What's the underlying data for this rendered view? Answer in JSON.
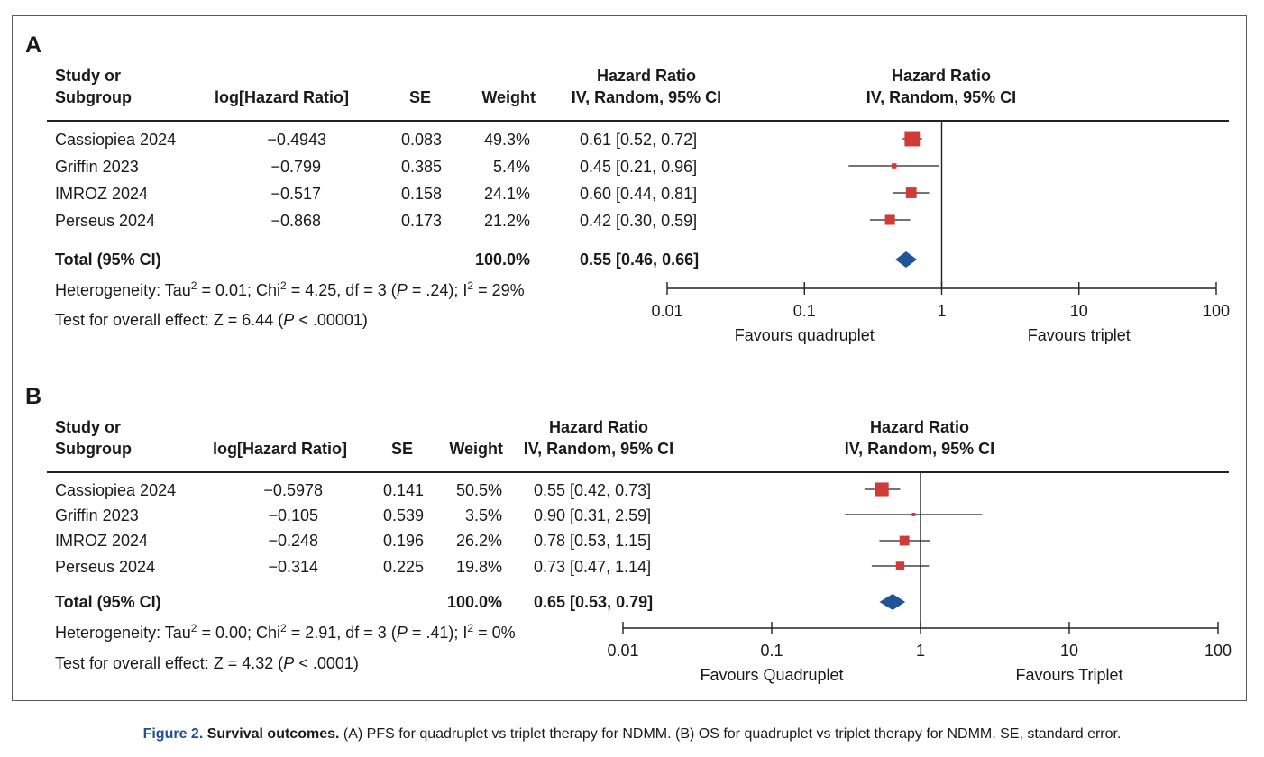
{
  "caption": {
    "figure_label": "Figure 2.",
    "title": "Survival outcomes.",
    "text": " (A) PFS for quadruplet vs triplet therapy for NDMM. (B) OS for quadruplet vs triplet therapy for NDMM. SE, standard error."
  },
  "colors": {
    "study_marker": "#d23a35",
    "total_diamond": "#1f5496",
    "line": "#222222"
  },
  "chart_data": [
    {
      "type": "forest",
      "panel": "A",
      "columns": {
        "study_l1": "Study or",
        "study_l2": "Subgroup",
        "loghr": "log[Hazard Ratio]",
        "se": "SE",
        "weight": "Weight",
        "hr_l1": "Hazard Ratio",
        "hr_l2": "IV, Random, 95% CI",
        "plot_l1": "Hazard Ratio",
        "plot_l2": "IV, Random, 95% CI"
      },
      "studies": [
        {
          "name": "Cassiopiea 2024",
          "loghr": "−0.4943",
          "se": "0.083",
          "weight": "49.3%",
          "ci_text": "0.61 [0.52, 0.72]",
          "hr": 0.61,
          "lo": 0.52,
          "hi": 0.72,
          "w": 49.3
        },
        {
          "name": "Griffin 2023",
          "loghr": "−0.799",
          "se": "0.385",
          "weight": "5.4%",
          "ci_text": "0.45 [0.21, 0.96]",
          "hr": 0.45,
          "lo": 0.21,
          "hi": 0.96,
          "w": 5.4
        },
        {
          "name": "IMROZ 2024",
          "loghr": "−0.517",
          "se": "0.158",
          "weight": "24.1%",
          "ci_text": "0.60 [0.44, 0.81]",
          "hr": 0.6,
          "lo": 0.44,
          "hi": 0.81,
          "w": 24.1
        },
        {
          "name": "Perseus 2024",
          "loghr": "−0.868",
          "se": "0.173",
          "weight": "21.2%",
          "ci_text": "0.42 [0.30, 0.59]",
          "hr": 0.42,
          "lo": 0.3,
          "hi": 0.59,
          "w": 21.2
        }
      ],
      "total": {
        "label": "Total (95% CI)",
        "weight": "100.0%",
        "ci_text": "0.55 [0.46, 0.66]",
        "hr": 0.55,
        "lo": 0.46,
        "hi": 0.66
      },
      "heterogeneity": {
        "p1": "Heterogeneity: Tau",
        "p2": " = 0.01; Chi",
        "p3": " = 4.25, df = 3 (",
        "p4": "P",
        "p5": " = .24); I",
        "p6": " = 29%"
      },
      "overall_effect": {
        "p1": "Test for overall effect: Z = 6.44 (",
        "p2": "P",
        "p3": " < .00001)"
      },
      "axis": {
        "scale": "log",
        "ticks": [
          0.01,
          0.1,
          1,
          10,
          100
        ],
        "tick_labels": [
          "0.01",
          "0.1",
          "1",
          "10",
          "100"
        ],
        "favours_left": "Favours quadruplet",
        "favours_right": "Favours triplet"
      }
    },
    {
      "type": "forest",
      "panel": "B",
      "columns": {
        "study_l1": "Study or",
        "study_l2": "Subgroup",
        "loghr": "log[Hazard Ratio]",
        "se": "SE",
        "weight": "Weight",
        "hr_l1": "Hazard Ratio",
        "hr_l2": "IV, Random, 95% CI",
        "plot_l1": "Hazard Ratio",
        "plot_l2": "IV, Random, 95% CI"
      },
      "studies": [
        {
          "name": "Cassiopiea 2024",
          "loghr": "−0.5978",
          "se": "0.141",
          "weight": "50.5%",
          "ci_text": "0.55 [0.42, 0.73]",
          "hr": 0.55,
          "lo": 0.42,
          "hi": 0.73,
          "w": 50.5
        },
        {
          "name": "Griffin 2023",
          "loghr": "−0.105",
          "se": "0.539",
          "weight": "3.5%",
          "ci_text": "0.90 [0.31, 2.59]",
          "hr": 0.9,
          "lo": 0.31,
          "hi": 2.59,
          "w": 3.5
        },
        {
          "name": "IMROZ 2024",
          "loghr": "−0.248",
          "se": "0.196",
          "weight": "26.2%",
          "ci_text": "0.78 [0.53, 1.15]",
          "hr": 0.78,
          "lo": 0.53,
          "hi": 1.15,
          "w": 26.2
        },
        {
          "name": "Perseus 2024",
          "loghr": "−0.314",
          "se": "0.225",
          "weight": "19.8%",
          "ci_text": "0.73 [0.47, 1.14]",
          "hr": 0.73,
          "lo": 0.47,
          "hi": 1.14,
          "w": 19.8
        }
      ],
      "total": {
        "label": "Total (95% CI)",
        "weight": "100.0%",
        "ci_text": "0.65 [0.53, 0.79]",
        "hr": 0.65,
        "lo": 0.53,
        "hi": 0.79
      },
      "heterogeneity": {
        "p1": "Heterogeneity: Tau",
        "p2": " = 0.00; Chi",
        "p3": " =  2.91, df = 3 (",
        "p4": "P",
        "p5": " = .41); I",
        "p6": " = 0%"
      },
      "overall_effect": {
        "p1": "Test for overall effect: Z = 4.32 (",
        "p2": "P",
        "p3": " < .0001)"
      },
      "axis": {
        "scale": "log",
        "ticks": [
          0.01,
          0.1,
          1,
          10,
          100
        ],
        "tick_labels": [
          "0.01",
          "0.1",
          "1",
          "10",
          "100"
        ],
        "favours_left": "Favours Quadruplet",
        "favours_right": "Favours Triplet"
      }
    }
  ]
}
